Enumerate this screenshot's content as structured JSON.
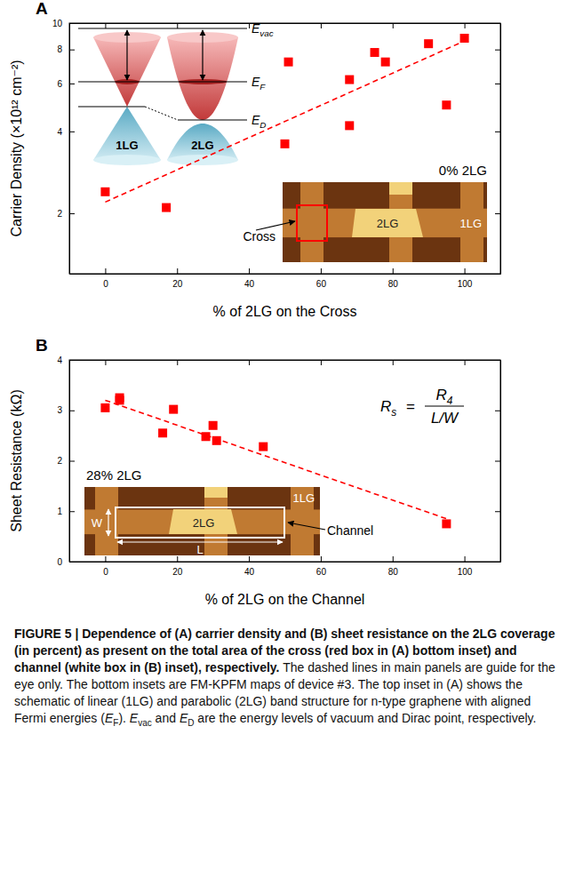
{
  "chart_data": [
    {
      "type": "scatter",
      "label": "A",
      "x_label": "% of 2LG on the Cross",
      "y_label": "Carrier Density (×10¹² cm⁻²)",
      "xlim": [
        -10,
        110
      ],
      "xticks": [
        0,
        20,
        40,
        60,
        80,
        100
      ],
      "ylim": [
        1.2,
        10
      ],
      "yticks": [
        2,
        4,
        6,
        8,
        10
      ],
      "log": "y",
      "series": [
        {
          "type": "scatter",
          "marker": "square",
          "color": "#ff0000",
          "x": [
            0,
            17,
            50,
            51,
            68,
            68,
            75,
            78,
            90,
            95,
            100
          ],
          "values": [
            2.4,
            2.1,
            3.6,
            7.2,
            4.2,
            6.2,
            7.8,
            7.2,
            8.4,
            5.0,
            8.8
          ]
        },
        {
          "type": "line",
          "line_style": "dashed",
          "color": "#ff0000",
          "x": [
            0,
            100
          ],
          "values": [
            2.2,
            8.6
          ]
        }
      ],
      "annotations": {
        "coverage": "0% 2LG",
        "map_labels": {
          "cross": "Cross",
          "bilayer": "2LG",
          "monolayer": "1LG"
        },
        "schematic": {
          "levels": [
            {
              "main": "E",
              "sub": "vac"
            },
            {
              "main": "E",
              "sub": "F"
            },
            {
              "main": "E",
              "sub": "D"
            }
          ],
          "cones": [
            "1LG",
            "2LG"
          ]
        }
      }
    },
    {
      "type": "scatter",
      "label": "B",
      "x_label": "% of 2LG on the Channel",
      "y_label": "Sheet Resistance (kΩ)",
      "xlim": [
        -10,
        110
      ],
      "xticks": [
        0,
        20,
        40,
        60,
        80,
        100
      ],
      "ylim": [
        0,
        4
      ],
      "yticks": [
        0,
        1,
        2,
        3,
        4
      ],
      "series": [
        {
          "type": "scatter",
          "marker": "square",
          "color": "#ff0000",
          "x": [
            0,
            4,
            4,
            16,
            19,
            28,
            30,
            31,
            44,
            95
          ],
          "values": [
            3.05,
            3.2,
            3.25,
            2.55,
            3.02,
            2.48,
            2.7,
            2.4,
            2.28,
            0.75
          ]
        },
        {
          "type": "line",
          "line_style": "dashed",
          "color": "#ff0000",
          "x": [
            0,
            95
          ],
          "values": [
            3.2,
            0.85
          ]
        }
      ],
      "annotations": {
        "coverage": "28% 2LG",
        "formula": {
          "lhs": {
            "main": "R",
            "sub": "s"
          },
          "equals": "=",
          "numerator": {
            "main": "R",
            "sub": "4"
          },
          "denominator": "L/W"
        },
        "map_labels": {
          "width": "W",
          "length": "L",
          "bilayer": "2LG",
          "monolayer": "1LG",
          "channel": "Channel"
        }
      }
    }
  ],
  "caption": {
    "heading": "FIGURE 5 | Dependence of (A) carrier density and (B) sheet resistance on the 2LG coverage (in percent) as present on the total area of the cross (red box in (A) bottom inset) and channel (white box in (B) inset), respectively.",
    "body": [
      "The dashed lines in main panels are guide for the eye only. The bottom insets are FM-KPFM maps of device #3. The top inset in (A) shows the schematic of linear (1LG) and parabolic (2LG) band structure for n-type graphene with aligned Fermi energies (",
      {
        "main": "E",
        "sub": "F"
      },
      "). ",
      {
        "main": "E",
        "sub": "vac"
      },
      " and ",
      {
        "main": "E",
        "sub": "D"
      },
      " are the energy levels of vacuum and Dirac point, respectively."
    ]
  }
}
